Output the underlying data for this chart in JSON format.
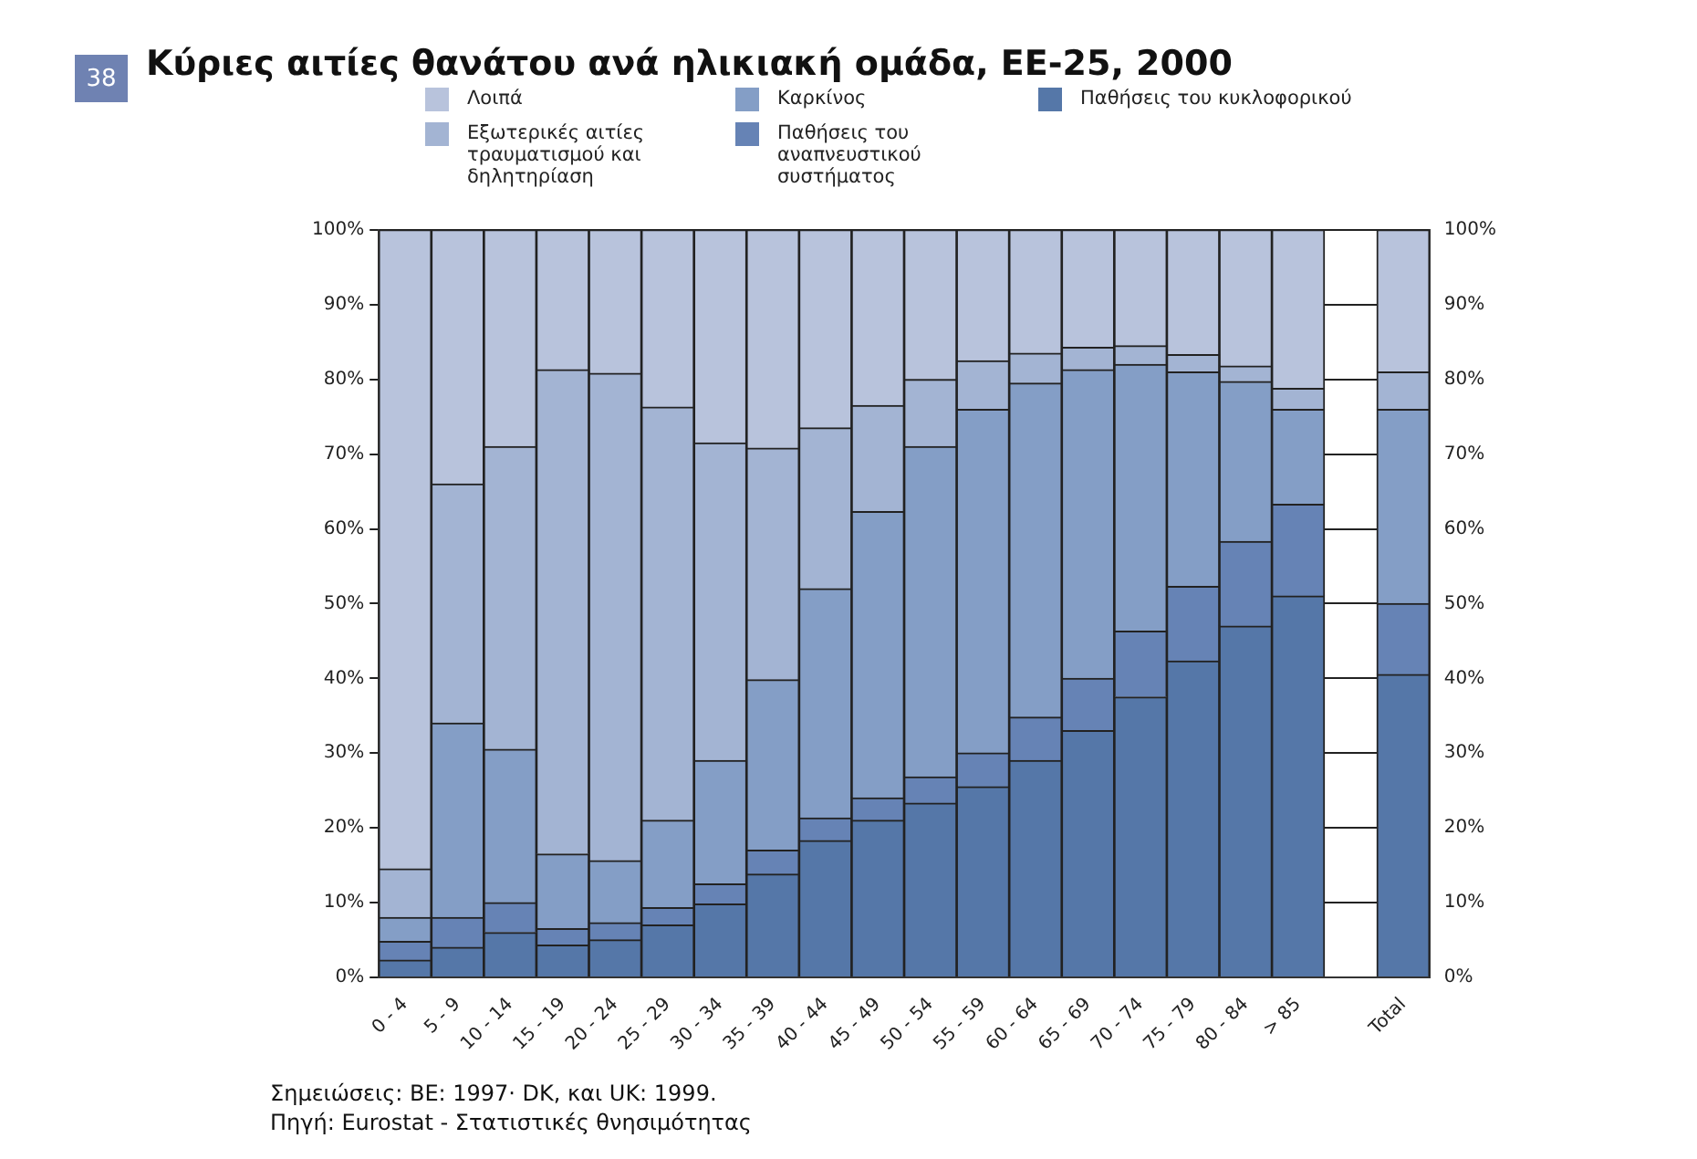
{
  "chart_data": {
    "type": "bar",
    "title": "Κύριες αιτίες θανάτου ανά ηλικιακή ομάδα, ΕΕ-25, 2000",
    "annotations": [
      "38",
      "Σημειώσεις: BE: 1997· DK, και UK: 1999.",
      "Πηγή: Eurostat - Στατιστικές θνησιμότητας"
    ],
    "categories": [
      "0 - 4",
      "5 - 9",
      "10 - 14",
      "15 - 19",
      "20 - 24",
      "25 - 29",
      "30 - 34",
      "35 - 39",
      "40 - 44",
      "45 - 49",
      "50 - 54",
      "55 - 59",
      "60 - 64",
      "65 - 69",
      "70 - 74",
      "75 - 79",
      "80 - 84",
      "> 85",
      null,
      "Total"
    ],
    "stacked": true,
    "series": [
      {
        "name": "Παθήσεις του κυκλοφορικού",
        "color": "#5577a8",
        "values": [
          2.3,
          4,
          6,
          4.3,
          5,
          7,
          9.8,
          13.8,
          18.3,
          21,
          23.3,
          25.5,
          29,
          33,
          37.5,
          42.3,
          47,
          51,
          null,
          40.5
        ]
      },
      {
        "name": "Παθήσεις του αναπνευστικού συστήματος",
        "color": "#6683b5",
        "values": [
          2.5,
          4,
          4,
          2.2,
          2.3,
          2.3,
          2.7,
          3.2,
          3,
          3,
          3.5,
          4.5,
          5.8,
          7,
          8.8,
          10,
          11.3,
          12.3,
          null,
          9.5
        ]
      },
      {
        "name": "Καρκίνος",
        "color": "#849ec6",
        "values": [
          3.2,
          26,
          20.5,
          10,
          8.3,
          11.7,
          16.5,
          22.8,
          30.7,
          38.3,
          44.2,
          46,
          44.7,
          41.3,
          35.7,
          28.7,
          21.4,
          12.7,
          null,
          26
        ]
      },
      {
        "name": "Εξωτερικές αιτίες τραυματισμού και δηλητηρίαση",
        "color": "#a3b4d3",
        "values": [
          6.5,
          32,
          40.5,
          64.8,
          65.2,
          55.3,
          42.5,
          31,
          21.5,
          14.2,
          9,
          6.5,
          4,
          3,
          2.5,
          2.3,
          2.1,
          2.8,
          null,
          5
        ]
      },
      {
        "name": "Λοιπά",
        "color": "#b8c3dc",
        "values": [
          85.5,
          34,
          29,
          18.7,
          19.2,
          23.7,
          28.5,
          29.2,
          26.5,
          23.5,
          20,
          17.5,
          16.5,
          15.7,
          15.5,
          16.7,
          18.2,
          21.2,
          null,
          19
        ]
      }
    ],
    "ylim": [
      0,
      100
    ],
    "yticks": [
      {
        "value": 0,
        "label": "0%"
      },
      {
        "value": 10,
        "label": "10%"
      },
      {
        "value": 20,
        "label": "20%"
      },
      {
        "value": 30,
        "label": "30%"
      },
      {
        "value": 40,
        "label": "40%"
      },
      {
        "value": 50,
        "label": "50%"
      },
      {
        "value": 60,
        "label": "60%"
      },
      {
        "value": 70,
        "label": "70%"
      },
      {
        "value": 80,
        "label": "80%"
      },
      {
        "value": 90,
        "label": "90%"
      },
      {
        "value": 100,
        "label": "100%"
      }
    ],
    "y2lim": [
      0,
      100
    ],
    "y2ticks": [
      {
        "value": 0,
        "label": "0%"
      },
      {
        "value": 10,
        "label": "10%"
      },
      {
        "value": 20,
        "label": "20%"
      },
      {
        "value": 30,
        "label": "30%"
      },
      {
        "value": 40,
        "label": "40%"
      },
      {
        "value": 50,
        "label": "50%"
      },
      {
        "value": 60,
        "label": "60%"
      },
      {
        "value": 70,
        "label": "70%"
      },
      {
        "value": 80,
        "label": "80%"
      },
      {
        "value": 90,
        "label": "90%"
      },
      {
        "value": 100,
        "label": "100%"
      }
    ],
    "grid": "y",
    "legend": "top"
  }
}
